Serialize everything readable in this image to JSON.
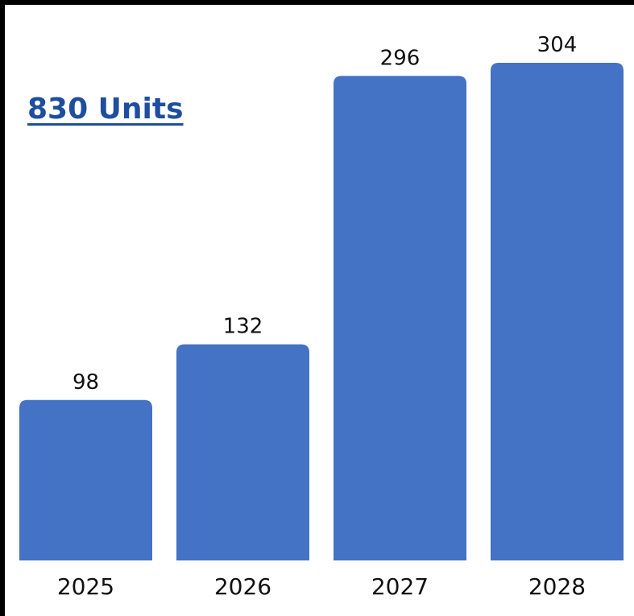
{
  "colors": {
    "bar": "#4472C4",
    "headline": "#1F4E9E",
    "text": "#111111",
    "frame": "#000000"
  },
  "chart_data": {
    "type": "bar",
    "title": "830 Units",
    "categories": [
      "2025",
      "2026",
      "2027",
      "2028"
    ],
    "values": [
      98,
      132,
      296,
      304
    ],
    "data_labels": [
      "98",
      "132",
      "296",
      "304"
    ],
    "xlabel": "",
    "ylabel": "",
    "ylim": [
      0,
      304
    ],
    "grid": false,
    "legend": "none",
    "y_axis_visible": false
  }
}
